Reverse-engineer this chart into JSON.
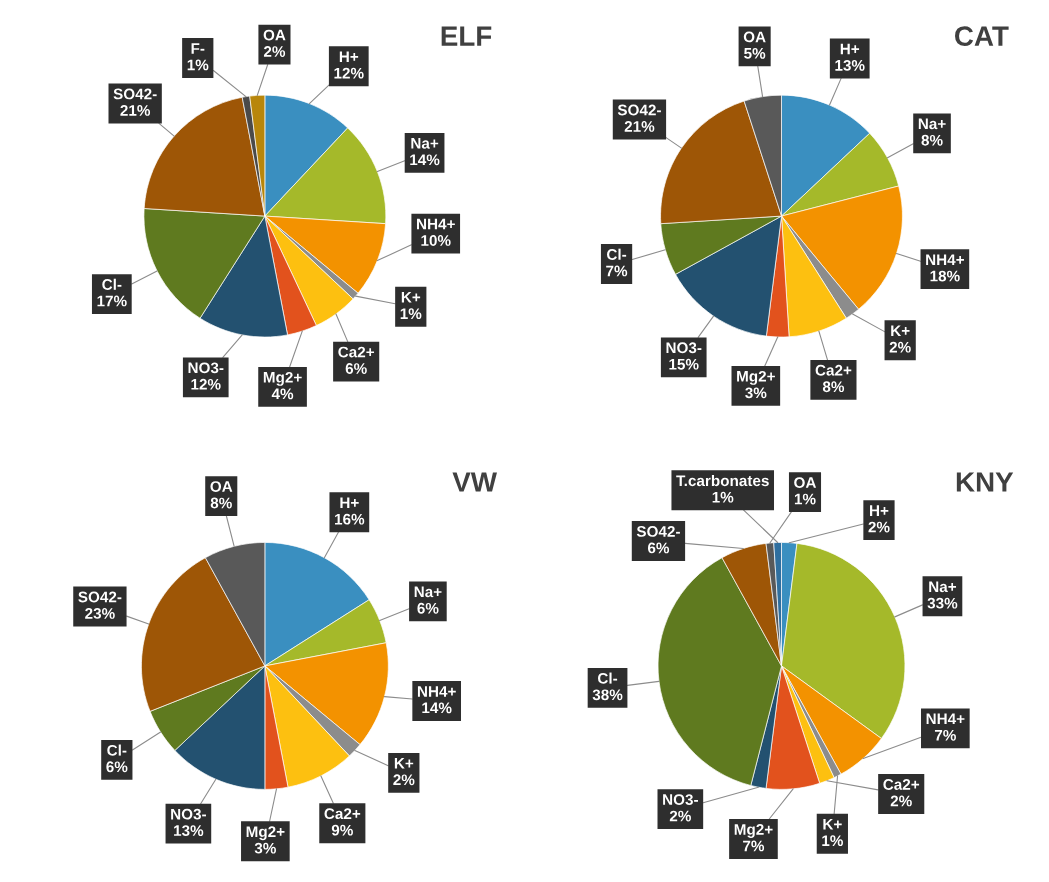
{
  "chart_data": [
    {
      "type": "pie",
      "title": "ELF",
      "categories": [
        "H+",
        "Na+",
        "NH4+",
        "K+",
        "Ca2+",
        "Mg2+",
        "NO3-",
        "Cl-",
        "SO42-",
        "F-",
        "OA"
      ],
      "values": [
        12,
        14,
        10,
        1,
        6,
        4,
        12,
        17,
        21,
        1,
        2
      ],
      "value_labels": [
        "12%",
        "14%",
        "10%",
        "1%",
        "6%",
        "4%",
        "12%",
        "17%",
        "21%",
        "1%",
        "2%"
      ],
      "colors": [
        "#3a8fc0",
        "#a5b92a",
        "#f39200",
        "#8c8c8c",
        "#fdc010",
        "#e2521d",
        "#235170",
        "#5f7a1f",
        "#9e5606",
        "#4a4a4a",
        "#b8860b"
      ]
    },
    {
      "type": "pie",
      "title": "CAT",
      "categories": [
        "H+",
        "Na+",
        "NH4+",
        "K+",
        "Ca2+",
        "Mg2+",
        "NO3-",
        "Cl-",
        "SO42-",
        "OA"
      ],
      "values": [
        13,
        8,
        18,
        2,
        8,
        3,
        15,
        7,
        21,
        5
      ],
      "value_labels": [
        "13%",
        "8%",
        "18%",
        "2%",
        "8%",
        "3%",
        "15%",
        "7%",
        "21%",
        "5%"
      ],
      "colors": [
        "#3a8fc0",
        "#a5b92a",
        "#f39200",
        "#8c8c8c",
        "#fdc010",
        "#e2521d",
        "#235170",
        "#5f7a1f",
        "#9e5606",
        "#595959"
      ]
    },
    {
      "type": "pie",
      "title": "VW",
      "categories": [
        "H+",
        "Na+",
        "NH4+",
        "K+",
        "Ca2+",
        "Mg2+",
        "NO3-",
        "Cl-",
        "SO42-",
        "OA"
      ],
      "values": [
        16,
        6,
        14,
        2,
        9,
        3,
        13,
        6,
        23,
        8
      ],
      "value_labels": [
        "16%",
        "6%",
        "14%",
        "2%",
        "9%",
        "3%",
        "13%",
        "6%",
        "23%",
        "8%"
      ],
      "colors": [
        "#3a8fc0",
        "#a5b92a",
        "#f39200",
        "#8c8c8c",
        "#fdc010",
        "#e2521d",
        "#235170",
        "#5f7a1f",
        "#9e5606",
        "#595959"
      ]
    },
    {
      "type": "pie",
      "title": "KNY",
      "categories": [
        "H+",
        "Na+",
        "NH4+",
        "K+",
        "Ca2+",
        "Mg2+",
        "NO3-",
        "Cl-",
        "SO42-",
        "OA",
        "T.carbonates"
      ],
      "values": [
        2,
        33,
        7,
        1,
        2,
        7,
        2,
        38,
        6,
        1,
        1
      ],
      "value_labels": [
        "2%",
        "33%",
        "7%",
        "1%",
        "2%",
        "7%",
        "2%",
        "38%",
        "6%",
        "1%",
        "1%"
      ],
      "colors": [
        "#3a8fc0",
        "#a5b92a",
        "#f39200",
        "#8c8c8c",
        "#fdc010",
        "#e2521d",
        "#235170",
        "#5f7a1f",
        "#9e5606",
        "#595959",
        "#2f6f9f"
      ]
    }
  ]
}
